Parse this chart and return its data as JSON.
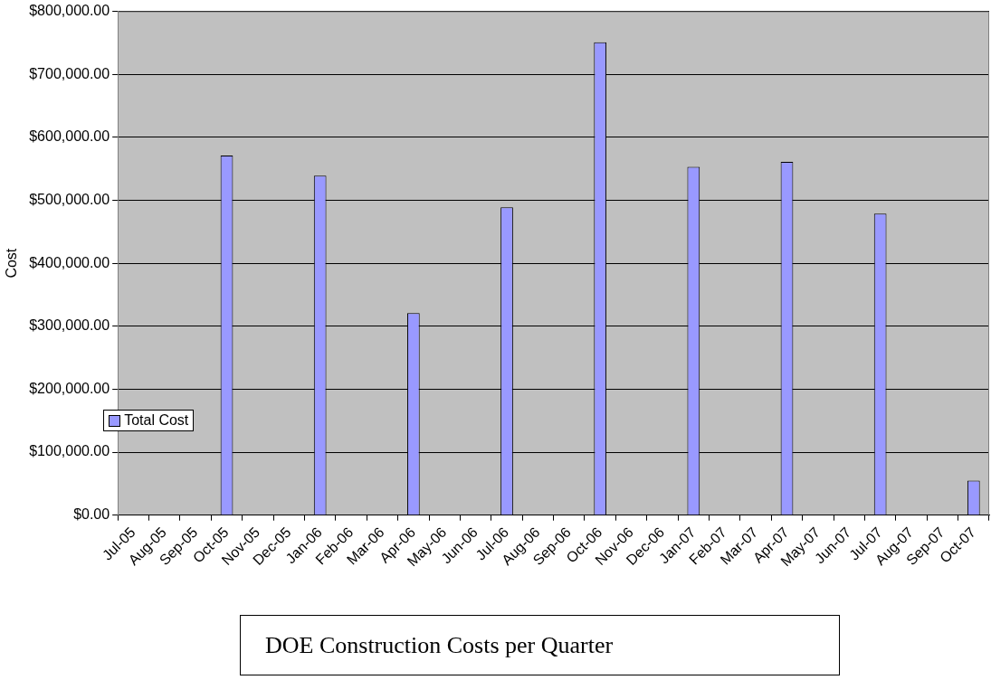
{
  "chart_data": {
    "type": "bar",
    "title": "DOE Construction Costs per Quarter",
    "ylabel": "Cost",
    "categories": [
      "Jul-05",
      "Aug-05",
      "Sep-05",
      "Oct-05",
      "Nov-05",
      "Dec-05",
      "Jan-06",
      "Feb-06",
      "Mar-06",
      "Apr-06",
      "May-06",
      "Jun-06",
      "Jul-06",
      "Aug-06",
      "Sep-06",
      "Oct-06",
      "Nov-06",
      "Dec-06",
      "Jan-07",
      "Feb-07",
      "Mar-07",
      "Apr-07",
      "May-07",
      "Jun-07",
      "Jul-07",
      "Aug-07",
      "Sep-07",
      "Oct-07"
    ],
    "series": [
      {
        "name": "Total Cost",
        "color": "#9999ff",
        "values": [
          null,
          null,
          null,
          571000,
          null,
          null,
          539000,
          null,
          null,
          321000,
          null,
          null,
          489000,
          null,
          null,
          751000,
          null,
          null,
          553000,
          null,
          null,
          561000,
          null,
          null,
          479000,
          null,
          null,
          55000
        ]
      }
    ],
    "ylim": [
      0,
      800000
    ],
    "yticks": [
      {
        "value": 0,
        "label": "$0.00"
      },
      {
        "value": 100000,
        "label": "$100,000.00"
      },
      {
        "value": 200000,
        "label": "$200,000.00"
      },
      {
        "value": 300000,
        "label": "$300,000.00"
      },
      {
        "value": 400000,
        "label": "$400,000.00"
      },
      {
        "value": 500000,
        "label": "$500,000.00"
      },
      {
        "value": 600000,
        "label": "$600,000.00"
      },
      {
        "value": 700000,
        "label": "$700,000.00"
      },
      {
        "value": 800000,
        "label": "$800,000.00"
      }
    ],
    "grid": "y",
    "legend": "left"
  }
}
